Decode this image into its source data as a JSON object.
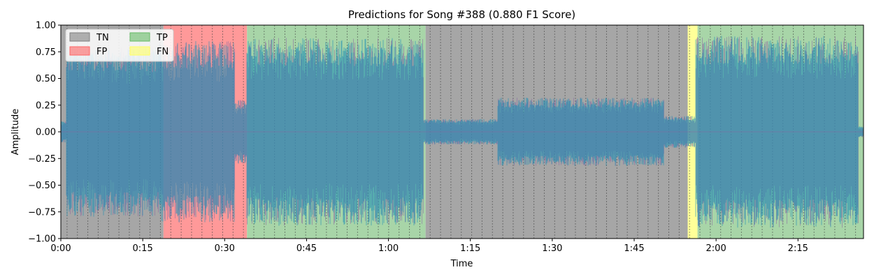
{
  "chart_data": {
    "type": "area",
    "title": "Predictions for Song #388 (0.880 F1 Score)",
    "xlabel": "Time",
    "ylabel": "Amplitude",
    "xlim": [
      0,
      147
    ],
    "ylim": [
      -1.0,
      1.0
    ],
    "x_unit": "seconds",
    "xticks": [
      {
        "value": 0,
        "label": "0:00"
      },
      {
        "value": 15,
        "label": "0:15"
      },
      {
        "value": 30,
        "label": "0:30"
      },
      {
        "value": 45,
        "label": "0:45"
      },
      {
        "value": 60,
        "label": "1:00"
      },
      {
        "value": 75,
        "label": "1:15"
      },
      {
        "value": 90,
        "label": "1:30"
      },
      {
        "value": 105,
        "label": "1:45"
      },
      {
        "value": 120,
        "label": "2:00"
      },
      {
        "value": 135,
        "label": "2:15"
      }
    ],
    "yticks": [
      {
        "value": 1.0,
        "label": "1.00"
      },
      {
        "value": 0.75,
        "label": "0.75"
      },
      {
        "value": 0.5,
        "label": "0.50"
      },
      {
        "value": 0.25,
        "label": "0.25"
      },
      {
        "value": 0.0,
        "label": "0.00"
      },
      {
        "value": -0.25,
        "label": "−0.25"
      },
      {
        "value": -0.5,
        "label": "−0.50"
      },
      {
        "value": -0.75,
        "label": "−0.75"
      },
      {
        "value": -1.0,
        "label": "−1.00"
      }
    ],
    "legend": {
      "placement": "top-left",
      "entries": [
        {
          "label": "TN",
          "color": "#808080"
        },
        {
          "label": "FP",
          "color": "#ff6666"
        },
        {
          "label": "TP",
          "color": "#66bb66"
        },
        {
          "label": "FN",
          "color": "#ffff66"
        }
      ]
    },
    "regions": [
      {
        "label": "TN",
        "start": 0.0,
        "end": 18.8,
        "color": "#a6a6a6"
      },
      {
        "label": "FP",
        "start": 18.8,
        "end": 34.1,
        "color": "#ff9999"
      },
      {
        "label": "TP",
        "start": 34.1,
        "end": 66.8,
        "color": "#a8d5a8"
      },
      {
        "label": "TN",
        "start": 66.8,
        "end": 114.8,
        "color": "#a6a6a6"
      },
      {
        "label": "FN",
        "start": 114.8,
        "end": 116.6,
        "color": "#ffff99"
      },
      {
        "label": "TP",
        "start": 116.6,
        "end": 147.0,
        "color": "#a8d5a8"
      }
    ],
    "beat_interval": 1.9,
    "waveform_envelope": [
      {
        "start": 0.0,
        "end": 1.0,
        "amp": 0.1
      },
      {
        "start": 1.0,
        "end": 18.0,
        "amp": 0.8
      },
      {
        "start": 18.0,
        "end": 31.8,
        "amp": 0.85
      },
      {
        "start": 31.8,
        "end": 34.0,
        "amp": 0.3
      },
      {
        "start": 34.0,
        "end": 66.4,
        "amp": 0.88
      },
      {
        "start": 66.4,
        "end": 80.0,
        "amp": 0.12
      },
      {
        "start": 80.0,
        "end": 110.5,
        "amp": 0.32
      },
      {
        "start": 110.5,
        "end": 116.2,
        "amp": 0.15
      },
      {
        "start": 116.2,
        "end": 146.0,
        "amp": 0.9
      },
      {
        "start": 146.0,
        "end": 147.0,
        "amp": 0.05
      }
    ],
    "waveform_colors": {
      "main": "#1f8fb4",
      "secondary": "#8a6aa0"
    }
  }
}
